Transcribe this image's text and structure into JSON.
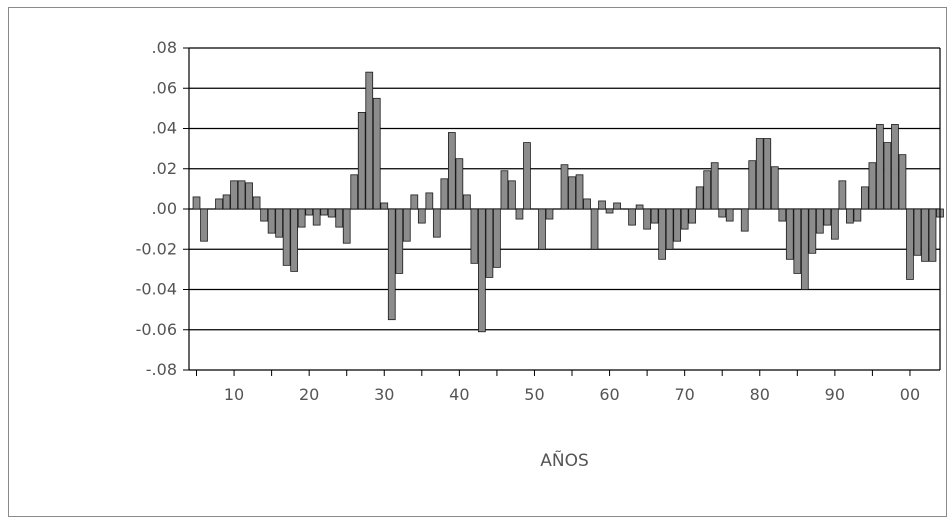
{
  "chart_data": {
    "type": "bar",
    "title": "",
    "xlabel": "AÑOS",
    "ylabel": "",
    "ylim": [
      -0.08,
      0.08
    ],
    "y_ticks": [
      0.08,
      0.06,
      0.04,
      0.02,
      0.0,
      -0.02,
      -0.04,
      -0.06,
      -0.08
    ],
    "y_tick_labels": [
      ".08",
      ".06",
      ".04",
      ".02",
      ".00",
      "-0.02",
      "-0.04",
      "-0.06",
      "-.08"
    ],
    "x_tick_labels": [
      "10",
      "20",
      "30",
      "40",
      "50",
      "60",
      "70",
      "80",
      "90",
      "00"
    ],
    "x_range": [
      1904,
      2004
    ],
    "grid": "horizontal",
    "bar_color": "#8c8c8c",
    "x": [
      1905,
      1906,
      1907,
      1908,
      1909,
      1910,
      1911,
      1912,
      1913,
      1914,
      1915,
      1916,
      1917,
      1918,
      1919,
      1920,
      1921,
      1922,
      1923,
      1924,
      1925,
      1926,
      1927,
      1928,
      1929,
      1930,
      1931,
      1932,
      1933,
      1934,
      1935,
      1936,
      1937,
      1938,
      1939,
      1940,
      1941,
      1942,
      1943,
      1944,
      1945,
      1946,
      1947,
      1948,
      1949,
      1950,
      1951,
      1952,
      1953,
      1954,
      1955,
      1956,
      1957,
      1958,
      1959,
      1960,
      1961,
      1962,
      1963,
      1964,
      1965,
      1966,
      1967,
      1968,
      1969,
      1970,
      1971,
      1972,
      1973,
      1974,
      1975,
      1976,
      1977,
      1978,
      1979,
      1980,
      1981,
      1982,
      1983,
      1984,
      1985,
      1986,
      1987,
      1988,
      1989,
      1990,
      1991,
      1992,
      1993,
      1994,
      1995,
      1996,
      1997,
      1998,
      1999,
      2000,
      2001,
      2002,
      2003,
      2004
    ],
    "values": [
      0.006,
      -0.016,
      0.0,
      0.005,
      0.007,
      0.014,
      0.014,
      0.013,
      0.006,
      -0.006,
      -0.012,
      -0.014,
      -0.028,
      -0.031,
      -0.009,
      -0.003,
      -0.008,
      -0.003,
      -0.004,
      -0.009,
      -0.017,
      0.017,
      0.048,
      0.068,
      0.055,
      0.003,
      -0.055,
      -0.032,
      -0.016,
      0.007,
      -0.007,
      0.008,
      -0.014,
      0.015,
      0.038,
      0.025,
      0.007,
      -0.027,
      -0.061,
      -0.034,
      -0.029,
      0.019,
      0.014,
      -0.005,
      0.033,
      0.0,
      -0.02,
      -0.005,
      0.0,
      0.022,
      0.016,
      0.017,
      0.005,
      -0.02,
      0.004,
      -0.002,
      0.003,
      0.0,
      -0.008,
      0.002,
      -0.01,
      -0.007,
      -0.025,
      -0.02,
      -0.016,
      -0.01,
      -0.007,
      0.011,
      0.019,
      0.023,
      -0.004,
      -0.006,
      0.0,
      -0.011,
      0.024,
      0.035,
      0.035,
      0.021,
      -0.006,
      -0.025,
      -0.032,
      -0.04,
      -0.022,
      -0.012,
      -0.008,
      -0.015,
      0.014,
      -0.007,
      -0.006,
      0.011,
      0.023,
      0.042,
      0.033,
      0.042,
      0.027,
      -0.035,
      -0.023,
      -0.026,
      -0.026,
      -0.004
    ]
  }
}
